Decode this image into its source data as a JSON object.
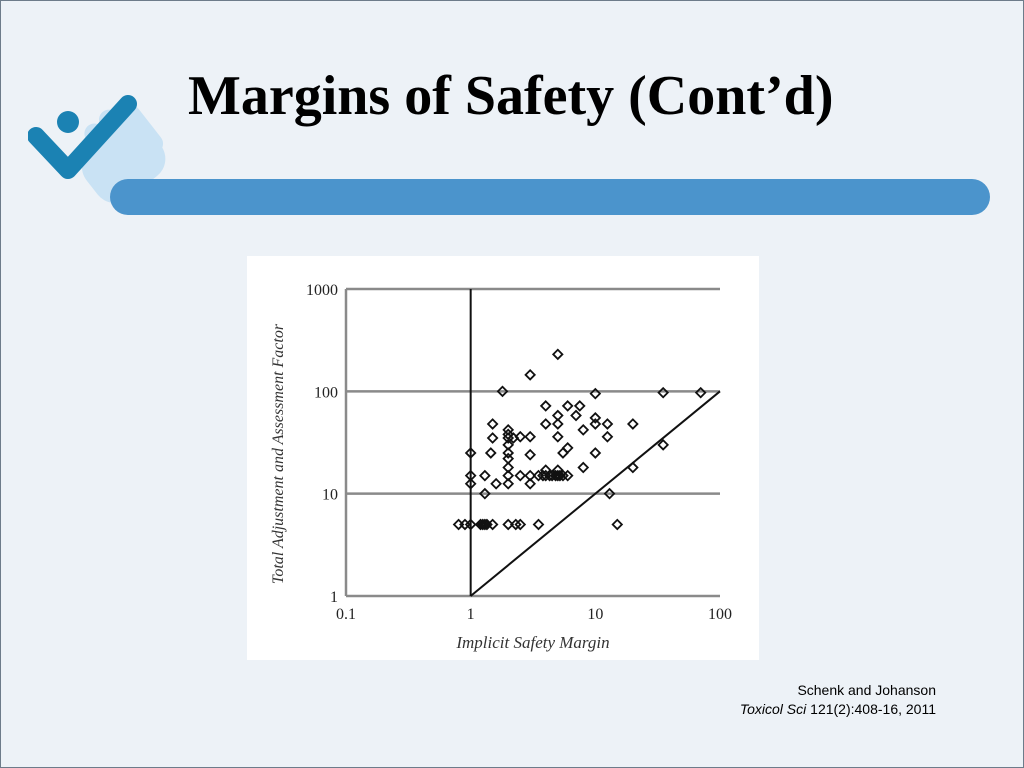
{
  "slide": {
    "title": "Margins of Safety (Cont’d)",
    "colors": {
      "background": "#edf2f7",
      "accent_bar": "#4b94cc",
      "logo_dark": "#1b82b3",
      "logo_light": "#c9e2f4"
    }
  },
  "citation": {
    "authors": "Schenk and Johanson",
    "journal": "Toxicol Sci",
    "reference": "121(2):408-16, 2011"
  },
  "logo": {
    "icon": "hand-checkmark-icon"
  },
  "chart_data": {
    "type": "scatter",
    "xlabel": "Implicit Safety Margin",
    "ylabel": "Total Adjustment and Assessment  Factor",
    "x_scale": "log",
    "y_scale": "log",
    "xlim": [
      0.1,
      100
    ],
    "ylim": [
      1,
      1000
    ],
    "x_ticks": [
      "0.1",
      "1",
      "10",
      "100"
    ],
    "y_ticks": [
      "1",
      "10",
      "100",
      "1000"
    ],
    "grid": "horizontal",
    "reference_lines": [
      {
        "kind": "vertical",
        "x": 1,
        "y_range": [
          1,
          1000
        ]
      },
      {
        "kind": "diagonal",
        "from": [
          1,
          1
        ],
        "to": [
          100,
          100
        ]
      }
    ],
    "marker": "open-diamond",
    "points": [
      [
        0.8,
        5
      ],
      [
        0.9,
        5
      ],
      [
        1.0,
        5
      ],
      [
        1.2,
        5
      ],
      [
        1.25,
        5
      ],
      [
        1.3,
        5
      ],
      [
        1.35,
        5
      ],
      [
        1.5,
        5
      ],
      [
        2.0,
        5
      ],
      [
        2.3,
        5
      ],
      [
        2.5,
        5
      ],
      [
        3.5,
        5
      ],
      [
        15,
        5
      ],
      [
        1.3,
        10
      ],
      [
        13,
        10
      ],
      [
        1.0,
        12.5
      ],
      [
        1.0,
        15
      ],
      [
        1.0,
        25
      ],
      [
        1.3,
        15
      ],
      [
        1.6,
        12.5
      ],
      [
        2.0,
        12.5
      ],
      [
        2.0,
        15
      ],
      [
        2.0,
        18
      ],
      [
        2.0,
        22
      ],
      [
        2.0,
        25
      ],
      [
        2.0,
        30
      ],
      [
        2.0,
        35
      ],
      [
        2.0,
        38
      ],
      [
        2.0,
        42
      ],
      [
        2.2,
        35
      ],
      [
        2.5,
        15
      ],
      [
        2.5,
        36
      ],
      [
        3.0,
        12.5
      ],
      [
        3.0,
        15
      ],
      [
        3.0,
        24
      ],
      [
        3.0,
        36
      ],
      [
        3.5,
        15
      ],
      [
        3.8,
        15
      ],
      [
        4.0,
        15
      ],
      [
        4.0,
        17
      ],
      [
        4.3,
        15
      ],
      [
        4.5,
        15
      ],
      [
        4.8,
        15
      ],
      [
        5.0,
        15
      ],
      [
        5.0,
        17
      ],
      [
        5.2,
        15
      ],
      [
        5.5,
        15
      ],
      [
        6.0,
        15
      ],
      [
        5.5,
        25
      ],
      [
        6.0,
        28
      ],
      [
        5.0,
        36
      ],
      [
        5.0,
        48
      ],
      [
        5.0,
        58
      ],
      [
        4.0,
        48
      ],
      [
        4.0,
        72
      ],
      [
        6.0,
        72
      ],
      [
        7.0,
        58
      ],
      [
        7.5,
        72
      ],
      [
        8.0,
        42
      ],
      [
        8.0,
        18
      ],
      [
        10,
        25
      ],
      [
        10,
        48
      ],
      [
        10,
        55
      ],
      [
        10,
        95
      ],
      [
        12.5,
        48
      ],
      [
        12.5,
        36
      ],
      [
        20,
        48
      ],
      [
        20,
        18
      ],
      [
        35,
        30
      ],
      [
        35,
        97
      ],
      [
        70,
        97
      ],
      [
        1.5,
        35
      ],
      [
        1.5,
        48
      ],
      [
        1.45,
        25
      ],
      [
        1.8,
        100
      ],
      [
        3.0,
        145
      ],
      [
        5.0,
        230
      ]
    ]
  }
}
